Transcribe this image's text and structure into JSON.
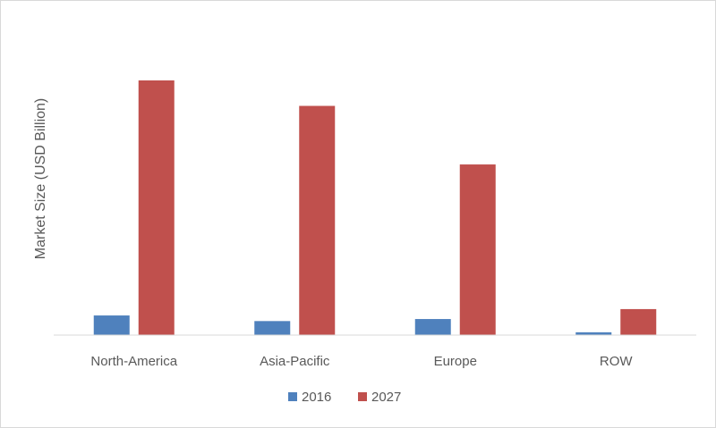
{
  "chart_data": {
    "type": "bar",
    "title": "",
    "xlabel": "",
    "ylabel": "Market Size (USD Billion)",
    "categories": [
      "North-America",
      "Asia-Pacific",
      "Europe",
      "ROW"
    ],
    "series": [
      {
        "name": "2016",
        "color": "#4f81bd",
        "values": [
          7.7,
          5.5,
          6.3,
          1.1
        ]
      },
      {
        "name": "2027",
        "color": "#c0504d",
        "values": [
          100,
          90,
          67,
          10.2
        ]
      }
    ],
    "ylim": [
      0,
      100
    ],
    "grid": false,
    "legend_position": "bottom"
  }
}
